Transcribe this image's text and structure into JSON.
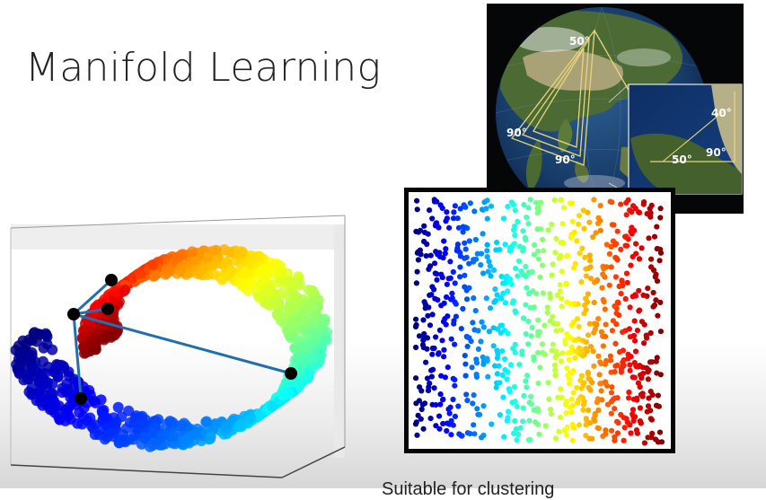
{
  "title": "Manifold Learning",
  "caption": "Suitable for clustering",
  "globe": {
    "angle_labels": [
      "50°",
      "90°",
      "90°"
    ],
    "inset_labels": [
      "40°",
      "50°",
      "90°"
    ]
  },
  "colors": {
    "title": "#222222",
    "graph_edge": "#1f6fb2",
    "graph_node": "#000000",
    "ocean": "#14345e",
    "land": "#3d5a2a"
  },
  "swiss_roll": {
    "graph_nodes": 5,
    "graph_edges": 5
  },
  "unrolled": {
    "point_count": 900,
    "colormap": "jet",
    "color_direction": "left-to-right"
  }
}
